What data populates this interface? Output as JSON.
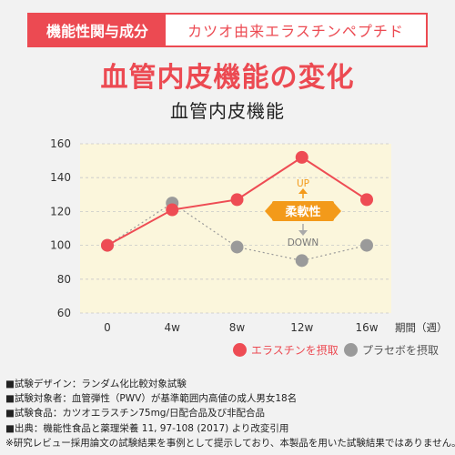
{
  "header": {
    "tag": "機能性関与成分",
    "ingredient": "カツオ由来エラスチンペプチド"
  },
  "main_title": "血管内皮機能の変化",
  "chart_title": "血管内皮機能",
  "colors": {
    "elastin": "#ee4c54",
    "placebo": "#9a9a9a",
    "flex_badge": "#f39a1a",
    "plot_bg": "#fbf6dc"
  },
  "chart_data": {
    "type": "line",
    "title": "血管内皮機能",
    "xlabel": "期間（週）",
    "ylabel": "",
    "categories": [
      "0",
      "4w",
      "8w",
      "12w",
      "16w"
    ],
    "ylim": [
      60,
      160
    ],
    "yticks": [
      60,
      80,
      100,
      120,
      140,
      160
    ],
    "grid": true,
    "legend_position": "bottom-right",
    "series": [
      {
        "name": "エラスチンを摂取",
        "values": [
          100,
          121,
          127,
          152,
          127
        ],
        "style": "solid"
      },
      {
        "name": "プラセボを摂取",
        "values": [
          100,
          125,
          99,
          91,
          100
        ],
        "style": "dotted"
      }
    ],
    "annotation": {
      "badge": "柔軟性",
      "up": "UP",
      "down": "DOWN"
    }
  },
  "legend": {
    "elastin": "エラスチンを摂取",
    "placebo": "プラセボを摂取"
  },
  "notes": [
    "■試験デザイン：ランダム化比較対象試験",
    "■試験対象者：血管弾性（PWV）が基準範囲内高値の成人男女18名",
    "■試験食品：カツオエラスチン75mg/日配合品及び非配合品",
    "■出典：機能性食品と薬理栄養 11, 97-108 (2017) より改変引用",
    "※研究レビュー採用論文の試験結果を事例として提示しており、本製品を用いた試験結果ではありません。"
  ]
}
